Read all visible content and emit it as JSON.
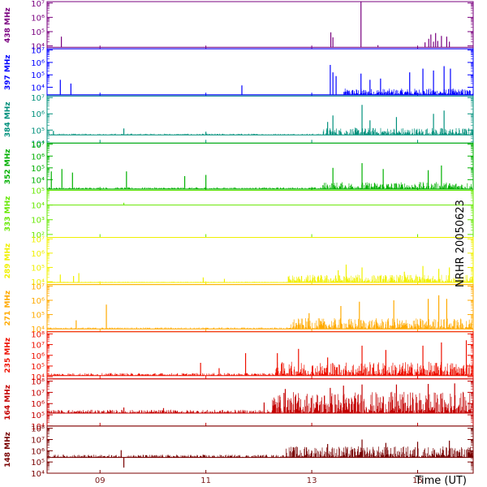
{
  "chart_data": {
    "type": "line",
    "side_label": "NRHR 20050623",
    "xlabel": "Time (UT)",
    "x_range_hours": [
      8.0,
      16.05
    ],
    "x_ticks": [
      {
        "hour": 9,
        "label": "09"
      },
      {
        "hour": 11,
        "label": "11"
      },
      {
        "hour": 13,
        "label": "13"
      },
      {
        "hour": 15,
        "label": "15"
      }
    ],
    "panels": [
      {
        "name": "438 MHz",
        "color": "#7a007f",
        "baseline": 3.9,
        "ylim": [
          3.8,
          7.1
        ],
        "ticks": [
          {
            "v": 4,
            "label": "10⁴"
          },
          {
            "v": 5,
            "label": "10⁵"
          },
          {
            "v": 6,
            "label": "10⁶"
          },
          {
            "v": 7,
            "label": "10⁷"
          }
        ],
        "noise": {
          "before": 0.0,
          "after": 0.0,
          "onset": 13.4
        },
        "spikes": [
          [
            8.27,
            4.65
          ],
          [
            13.36,
            4.95
          ],
          [
            13.4,
            4.6
          ],
          [
            13.93,
            7.15
          ],
          [
            14.25,
            4.05
          ],
          [
            15.14,
            4.25
          ],
          [
            15.21,
            4.5
          ],
          [
            15.25,
            4.8
          ],
          [
            15.3,
            4.3
          ],
          [
            15.34,
            4.9
          ],
          [
            15.38,
            4.35
          ],
          [
            15.45,
            4.7
          ],
          [
            15.55,
            4.65
          ],
          [
            15.6,
            4.3
          ]
        ]
      },
      {
        "name": "397 MHz",
        "color": "#0000ff",
        "baseline": 3.4,
        "ylim": [
          3.3,
          7.1
        ],
        "ticks": [
          {
            "v": 4,
            "label": "10⁴"
          },
          {
            "v": 5,
            "label": "10⁵"
          },
          {
            "v": 6,
            "label": "10⁶"
          },
          {
            "v": 7,
            "label": "10⁷"
          }
        ],
        "noise": {
          "before": 0.0,
          "after": 0.5,
          "onset": 13.6
        },
        "spikes": [
          [
            8.25,
            4.6
          ],
          [
            8.45,
            4.3
          ],
          [
            11.68,
            4.15
          ],
          [
            13.35,
            5.8
          ],
          [
            13.4,
            5.2
          ],
          [
            13.46,
            4.9
          ],
          [
            13.93,
            5.1
          ],
          [
            14.1,
            4.6
          ],
          [
            14.3,
            4.7
          ],
          [
            14.85,
            5.2
          ],
          [
            15.1,
            5.5
          ],
          [
            15.3,
            5.35
          ],
          [
            15.5,
            5.7
          ],
          [
            15.62,
            5.5
          ]
        ]
      },
      {
        "name": "384 MHz",
        "color": "#00907c",
        "baseline": 4.7,
        "ylim": [
          4.2,
          7.1
        ],
        "ticks": [
          {
            "v": 4,
            "label": "10⁴"
          },
          {
            "v": 5,
            "label": "10⁵"
          },
          {
            "v": 6,
            "label": "10⁶"
          },
          {
            "v": 7,
            "label": "10⁷"
          }
        ],
        "noise": {
          "before": 0.08,
          "after": 0.45,
          "onset": 13.2
        },
        "spikes": [
          [
            8.12,
            4.95
          ],
          [
            9.45,
            5.1
          ],
          [
            11.0,
            4.9
          ],
          [
            13.3,
            5.5
          ],
          [
            13.4,
            5.9
          ],
          [
            13.95,
            6.55
          ],
          [
            14.1,
            5.6
          ],
          [
            14.6,
            5.8
          ],
          [
            15.3,
            6.0
          ],
          [
            15.5,
            6.2
          ]
        ]
      },
      {
        "name": "352 MHz",
        "color": "#00b000",
        "baseline": 3.2,
        "ylim": [
          3.1,
          7.1
        ],
        "ticks": [
          {
            "v": 4,
            "label": "10⁴"
          },
          {
            "v": 5,
            "label": "10⁵"
          },
          {
            "v": 6,
            "label": "10⁶"
          },
          {
            "v": 7,
            "label": "10⁷"
          }
        ],
        "noise": {
          "before": 0.15,
          "after": 0.6,
          "onset": 13.2
        },
        "spikes": [
          [
            8.08,
            4.7
          ],
          [
            8.28,
            4.9
          ],
          [
            8.48,
            4.6
          ],
          [
            9.5,
            4.7
          ],
          [
            10.6,
            4.3
          ],
          [
            11.0,
            4.4
          ],
          [
            13.4,
            5.0
          ],
          [
            13.95,
            5.4
          ],
          [
            14.35,
            4.9
          ],
          [
            15.2,
            4.8
          ],
          [
            15.45,
            5.2
          ]
        ]
      },
      {
        "name": "333 MHz",
        "color": "#66e800",
        "baseline": 4.0,
        "ylim": [
          1.8,
          5.0
        ],
        "ticks": [
          {
            "v": 2,
            "label": "10²"
          },
          {
            "v": 3,
            "label": "10³"
          },
          {
            "v": 4,
            "label": "10⁴"
          },
          {
            "v": 5,
            "label": "10⁵"
          }
        ],
        "noise": {
          "before": 0.0,
          "after": 0.0,
          "onset": 13.0
        },
        "spikes": [
          [
            9.45,
            4.15
          ]
        ]
      },
      {
        "name": "289 MHz",
        "color": "#f0f000",
        "baseline": 3.95,
        "ylim": [
          3.8,
          7.1
        ],
        "ticks": [
          {
            "v": 4,
            "label": "10⁴"
          },
          {
            "v": 5,
            "label": "10⁵"
          },
          {
            "v": 6,
            "label": "10⁶"
          },
          {
            "v": 7,
            "label": "10⁷"
          }
        ],
        "noise": {
          "before": 0.05,
          "after": 0.55,
          "onset": 12.55
        },
        "spikes": [
          [
            8.25,
            4.5
          ],
          [
            8.5,
            4.4
          ],
          [
            8.6,
            4.6
          ],
          [
            10.95,
            4.3
          ],
          [
            11.35,
            4.2
          ],
          [
            13.5,
            4.8
          ],
          [
            13.65,
            5.2
          ],
          [
            13.95,
            5.0
          ],
          [
            14.75,
            4.7
          ],
          [
            15.1,
            5.1
          ],
          [
            15.4,
            4.9
          ],
          [
            15.6,
            5.0
          ]
        ]
      },
      {
        "name": "271 MHz",
        "color": "#ffaa00",
        "baseline": 4.0,
        "ylim": [
          3.8,
          7.1
        ],
        "ticks": [
          {
            "v": 4,
            "label": "10⁴"
          },
          {
            "v": 5,
            "label": "10⁵"
          },
          {
            "v": 6,
            "label": "10⁶"
          },
          {
            "v": 7,
            "label": "10⁷"
          }
        ],
        "noise": {
          "before": 0.1,
          "after": 0.75,
          "onset": 12.6
        },
        "spikes": [
          [
            9.12,
            5.7
          ],
          [
            8.55,
            4.6
          ],
          [
            12.95,
            5.1
          ],
          [
            13.55,
            5.6
          ],
          [
            13.9,
            5.9
          ],
          [
            14.55,
            6.0
          ],
          [
            15.2,
            6.1
          ],
          [
            15.4,
            6.35
          ],
          [
            15.55,
            6.1
          ]
        ]
      },
      {
        "name": "235 MHz",
        "color": "#ee1100",
        "baseline": 4.1,
        "ylim": [
          3.8,
          8.2
        ],
        "ticks": [
          {
            "v": 4,
            "label": "10⁴"
          },
          {
            "v": 5,
            "label": "10⁵"
          },
          {
            "v": 6,
            "label": "10⁶"
          },
          {
            "v": 7,
            "label": "10⁷"
          },
          {
            "v": 8,
            "label": "10⁸"
          }
        ],
        "noise": {
          "before": 0.25,
          "after": 1.3,
          "onset": 12.3
        },
        "spikes": [
          [
            10.9,
            5.3
          ],
          [
            11.25,
            4.8
          ],
          [
            11.75,
            6.2
          ],
          [
            12.35,
            6.2
          ],
          [
            12.75,
            6.6
          ],
          [
            13.3,
            5.8
          ],
          [
            13.95,
            6.9
          ],
          [
            14.4,
            6.5
          ],
          [
            15.1,
            6.9
          ],
          [
            15.45,
            7.2
          ],
          [
            15.92,
            7.4
          ]
        ]
      },
      {
        "name": "164 MHz",
        "color": "#c40000",
        "baseline": 5.15,
        "ylim": [
          4.0,
          8.2
        ],
        "ticks": [
          {
            "v": 4,
            "label": "10⁴"
          },
          {
            "v": 5,
            "label": "10⁵"
          },
          {
            "v": 6,
            "label": "10⁶"
          },
          {
            "v": 7,
            "label": "10⁷"
          },
          {
            "v": 8,
            "label": "10⁸"
          }
        ],
        "noise": {
          "before": 0.3,
          "after": 1.9,
          "onset": 12.25
        },
        "spikes": [
          [
            9.45,
            5.65
          ],
          [
            10.2,
            5.6
          ],
          [
            12.1,
            6.1
          ],
          [
            12.4,
            6.6
          ],
          [
            12.5,
            7.3
          ],
          [
            13.35,
            7.4
          ],
          [
            13.6,
            7.6
          ],
          [
            13.95,
            7.7
          ],
          [
            14.6,
            7.7
          ],
          [
            15.2,
            7.75
          ],
          [
            15.7,
            7.8
          ]
        ]
      },
      {
        "name": "148 MHz",
        "color": "#780000",
        "baseline": 5.4,
        "ylim": [
          4.0,
          8.2
        ],
        "ticks": [
          {
            "v": 4,
            "label": "10⁴"
          },
          {
            "v": 5,
            "label": "10⁵"
          },
          {
            "v": 6,
            "label": "10⁶"
          },
          {
            "v": 7,
            "label": "10⁷"
          },
          {
            "v": 8,
            "label": "10⁸"
          }
        ],
        "noise": {
          "before": 0.25,
          "after": 1.0,
          "onset": 12.5
        },
        "spikes": [
          [
            9.4,
            6.05
          ],
          [
            9.45,
            4.5
          ],
          [
            12.9,
            6.3
          ],
          [
            13.3,
            6.6
          ],
          [
            13.95,
            7.0
          ],
          [
            14.4,
            6.7
          ],
          [
            15.0,
            6.8
          ],
          [
            15.6,
            6.9
          ]
        ]
      }
    ]
  }
}
